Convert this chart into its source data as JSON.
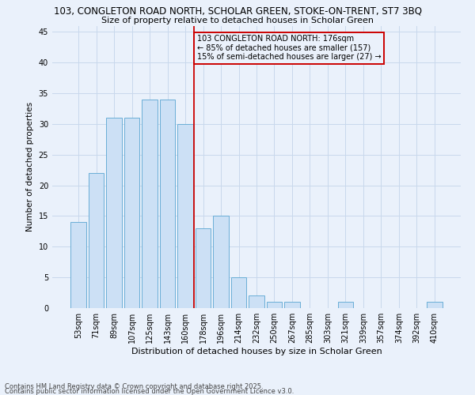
{
  "title": "103, CONGLETON ROAD NORTH, SCHOLAR GREEN, STOKE-ON-TRENT, ST7 3BQ",
  "subtitle": "Size of property relative to detached houses in Scholar Green",
  "xlabel": "Distribution of detached houses by size in Scholar Green",
  "ylabel": "Number of detached properties",
  "bar_color": "#cce0f5",
  "bar_edgecolor": "#6aaed6",
  "bg_color": "#eaf1fb",
  "categories": [
    "53sqm",
    "71sqm",
    "89sqm",
    "107sqm",
    "125sqm",
    "143sqm",
    "160sqm",
    "178sqm",
    "196sqm",
    "214sqm",
    "232sqm",
    "250sqm",
    "267sqm",
    "285sqm",
    "303sqm",
    "321sqm",
    "339sqm",
    "357sqm",
    "374sqm",
    "392sqm",
    "410sqm"
  ],
  "values": [
    14,
    22,
    31,
    31,
    34,
    34,
    30,
    13,
    15,
    5,
    2,
    1,
    1,
    0,
    0,
    1,
    0,
    0,
    0,
    0,
    1
  ],
  "ylim": [
    0,
    46
  ],
  "yticks": [
    0,
    5,
    10,
    15,
    20,
    25,
    30,
    35,
    40,
    45
  ],
  "vline_index": 7,
  "annotation_line1": "103 CONGLETON ROAD NORTH: 176sqm",
  "annotation_line2": "← 85% of detached houses are smaller (157)",
  "annotation_line3": "15% of semi-detached houses are larger (27) →",
  "footer1": "Contains HM Land Registry data © Crown copyright and database right 2025.",
  "footer2": "Contains public sector information licensed under the Open Government Licence v3.0.",
  "grid_color": "#c8d8ec",
  "annotation_box_color": "#cc0000",
  "vline_color": "#cc0000",
  "title_fontsize": 8.5,
  "subtitle_fontsize": 8.0,
  "tick_fontsize": 7.0,
  "ylabel_fontsize": 7.5,
  "xlabel_fontsize": 8.0,
  "annotation_fontsize": 7.0,
  "footer_fontsize": 6.0
}
